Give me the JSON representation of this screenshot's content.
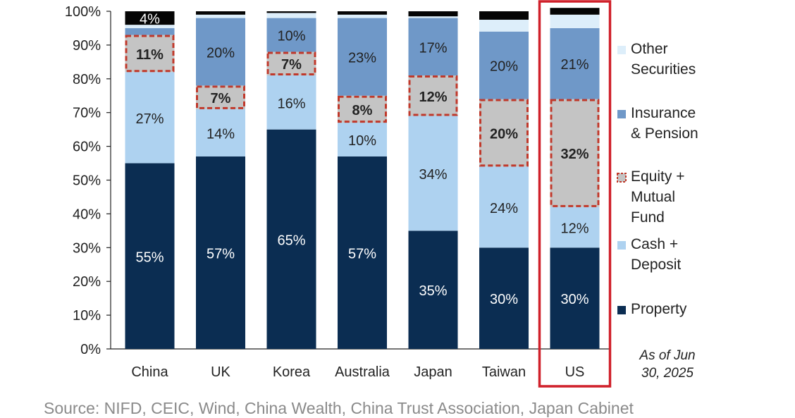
{
  "chart_data": {
    "type": "bar",
    "stacked": true,
    "title": "",
    "xlabel": "",
    "ylabel": "",
    "ylim": [
      0,
      100
    ],
    "yticks": [
      "0%",
      "10%",
      "20%",
      "30%",
      "40%",
      "50%",
      "60%",
      "70%",
      "80%",
      "90%",
      "100%"
    ],
    "categories": [
      "China",
      "UK",
      "Korea",
      "Australia",
      "Japan",
      "Taiwan",
      "US"
    ],
    "highlighted_category": "US",
    "legend_position": "right",
    "series": [
      {
        "name": "Property",
        "color": "#0b2d52",
        "values": [
          55,
          57,
          65,
          57,
          35,
          30,
          30
        ],
        "labels": [
          "55%",
          "57%",
          "65%",
          "57%",
          "35%",
          "30%",
          "30%"
        ],
        "label_color": "#ffffff",
        "label_bold": false
      },
      {
        "name": "Cash + Deposit",
        "color": "#aed2f0",
        "values": [
          27,
          14,
          16,
          10,
          34,
          24,
          12
        ],
        "labels": [
          "27%",
          "14%",
          "16%",
          "10%",
          "34%",
          "24%",
          "12%"
        ],
        "label_color": "#222222",
        "label_bold": false
      },
      {
        "name": "Equity + Mutual Fund",
        "color": "#c4c4c4",
        "border": "#c0392b",
        "dashed": true,
        "values": [
          11,
          7,
          7,
          8,
          12,
          20,
          32
        ],
        "labels": [
          "11%",
          "7%",
          "7%",
          "8%",
          "12%",
          "20%",
          "32%"
        ],
        "label_color": "#222222",
        "label_bold": true
      },
      {
        "name": "Insurance & Pension",
        "color": "#6f98c8",
        "values": [
          2,
          20,
          10,
          23,
          17,
          20,
          21
        ],
        "labels": [
          "",
          "20%",
          "10%",
          "23%",
          "17%",
          "20%",
          "21%"
        ],
        "label_color": "#222222",
        "label_bold": false
      },
      {
        "name": "Other Securities",
        "color": "#ddeefa",
        "values": [
          1,
          1,
          1.5,
          1,
          0.5,
          3.5,
          4
        ],
        "labels": [
          "",
          "",
          "",
          "",
          "",
          "",
          ""
        ],
        "label_color": "#222222",
        "label_bold": false
      },
      {
        "name": "Other",
        "color": "#050505",
        "values": [
          4,
          1,
          0.5,
          1,
          1.5,
          2.5,
          2
        ],
        "labels": [
          "4%",
          "",
          "",
          "",
          "",
          "",
          ""
        ],
        "label_color": "#ffffff",
        "label_bold": false
      }
    ],
    "legend": [
      {
        "lines": [
          "Other",
          "Securities"
        ],
        "color": "#ddeefa"
      },
      {
        "lines": [
          "Insurance",
          "& Pension"
        ],
        "color": "#6f98c8"
      },
      {
        "lines": [
          "Equity +",
          "Mutual",
          "Fund"
        ],
        "color": "#c4c4c4",
        "border": "#c0392b"
      },
      {
        "lines": [
          "Cash +",
          "Deposit"
        ],
        "color": "#aed2f0"
      },
      {
        "lines": [
          "Property"
        ],
        "color": "#0b2d52"
      }
    ],
    "note_lines": [
      "As of Jun",
      "30, 2025"
    ]
  },
  "source_text": "Source: NIFD, CEIC, Wind, China Wealth, China Trust Association, Japan Cabinet"
}
